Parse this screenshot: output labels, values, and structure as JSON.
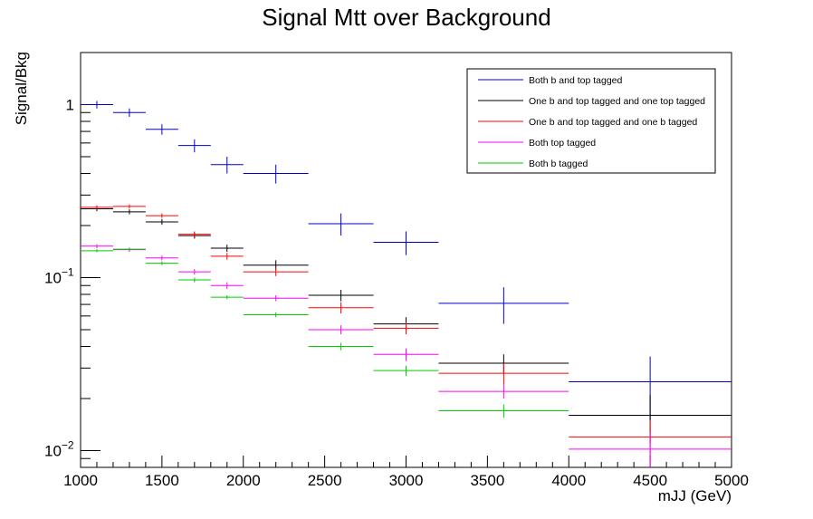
{
  "chart_data": {
    "type": "line",
    "title": "Signal Mtt over Background",
    "xlabel": "mJJ (GeV)",
    "ylabel": "Signal/Bkg",
    "xlim": [
      1000,
      5000
    ],
    "ylim": [
      0.008,
      2.0
    ],
    "yscale": "log",
    "grid": false,
    "legend_position": "top-right",
    "x_ticks": [
      1000,
      1500,
      2000,
      2500,
      3000,
      3500,
      4000,
      4500,
      5000
    ],
    "x_tick_labels": [
      "1000",
      "1500",
      "2000",
      "2500",
      "3000",
      "3500",
      "4000",
      "4500",
      "5000"
    ],
    "y_tick_labels": [
      {
        "value": 1,
        "base": "1",
        "exp": ""
      },
      {
        "value": 0.1,
        "base": "10",
        "exp": "−1"
      },
      {
        "value": 0.01,
        "base": "10",
        "exp": "−2"
      }
    ],
    "bin_edges": [
      1000,
      1200,
      1400,
      1600,
      1800,
      2000,
      2400,
      2800,
      3200,
      4000,
      5000
    ],
    "series": [
      {
        "name": "Both b and top tagged",
        "color": "#0000cc",
        "values": [
          1.0,
          0.9,
          0.72,
          0.58,
          0.45,
          0.4,
          0.205,
          0.16,
          0.071,
          0.025
        ],
        "errors": [
          0.05,
          0.05,
          0.05,
          0.05,
          0.05,
          0.05,
          0.03,
          0.025,
          0.017,
          0.01
        ]
      },
      {
        "name": "One b and top tagged and one top tagged",
        "color": "#000000",
        "values": [
          0.25,
          0.24,
          0.21,
          0.175,
          0.148,
          0.118,
          0.079,
          0.054,
          0.032,
          0.016
        ],
        "errors": [
          0.008,
          0.008,
          0.008,
          0.007,
          0.007,
          0.008,
          0.006,
          0.005,
          0.004,
          0.005
        ]
      },
      {
        "name": "One b and top tagged and one b tagged",
        "color": "#ff0000",
        "values": [
          0.255,
          0.258,
          0.228,
          0.178,
          0.133,
          0.108,
          0.067,
          0.051,
          0.028,
          0.012
        ],
        "errors": [
          0.007,
          0.007,
          0.007,
          0.007,
          0.006,
          0.006,
          0.005,
          0.004,
          0.004,
          0.003
        ]
      },
      {
        "name": "Both top tagged",
        "color": "#ff00ff",
        "values": [
          0.152,
          0.145,
          0.13,
          0.108,
          0.09,
          0.076,
          0.05,
          0.036,
          0.022,
          0.0102
        ],
        "errors": [
          0.004,
          0.004,
          0.004,
          0.004,
          0.004,
          0.003,
          0.003,
          0.003,
          0.002,
          0.0025
        ]
      },
      {
        "name": "Both b tagged",
        "color": "#00cc00",
        "values": [
          0.143,
          0.146,
          0.121,
          0.097,
          0.077,
          0.061,
          0.04,
          0.029,
          0.017
        ],
        "errors": [
          0.003,
          0.003,
          0.003,
          0.003,
          0.002,
          0.002,
          0.002,
          0.002,
          0.0015
        ]
      }
    ]
  }
}
